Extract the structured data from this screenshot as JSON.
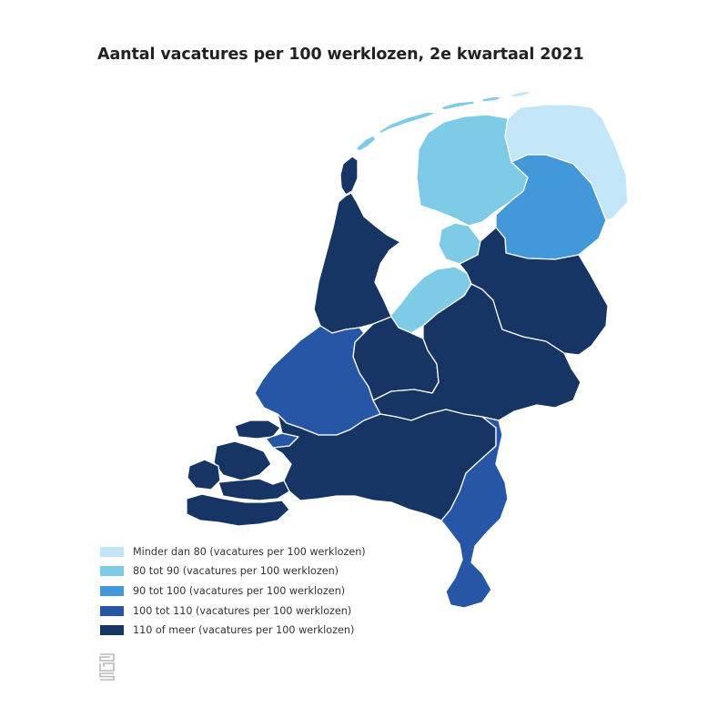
{
  "title": "Aantal vacatures per 100 werklozen, 2e kwartaal 2021",
  "colors": {
    "minder_dan_80": "#c3e5f8",
    "80_tot_90": "#7dcbe7",
    "90_tot_100": "#4298d8",
    "100_tot_110": "#2756a6",
    "110_of_meer": "#163564"
  },
  "legend": [
    {
      "label": "Minder dan 80 (vacatures per 100 werklozen)",
      "color": "#c3e5f8"
    },
    {
      "label": "80 tot 90 (vacatures per 100 werklozen)",
      "color": "#7dcbe7"
    },
    {
      "label": "90 tot 100 (vacatures per 100 werklozen)",
      "color": "#4298d8"
    },
    {
      "label": "100 tot 110 (vacatures per 100 werklozen)",
      "color": "#2756a6"
    },
    {
      "label": "110 of meer (vacatures per 100 werklozen)",
      "color": "#163564"
    }
  ],
  "regions": [
    {
      "name": "groningen",
      "category": "Minder dan 80"
    },
    {
      "name": "friesland",
      "category": "80 tot 90"
    },
    {
      "name": "drenthe",
      "category": "90 tot 100"
    },
    {
      "name": "flevoland",
      "category": "80 tot 90"
    },
    {
      "name": "noord-holland",
      "category": "110 of meer"
    },
    {
      "name": "zuid-holland",
      "category": "100 tot 110"
    },
    {
      "name": "utrecht",
      "category": "110 of meer"
    },
    {
      "name": "gelderland",
      "category": "110 of meer"
    },
    {
      "name": "overijssel",
      "category": "110 of meer"
    },
    {
      "name": "zeeland",
      "category": "110 of meer"
    },
    {
      "name": "noord-brabant",
      "category": "110 of meer"
    },
    {
      "name": "limburg",
      "category": "100 tot 110"
    }
  ],
  "logo": "cbs-logo"
}
